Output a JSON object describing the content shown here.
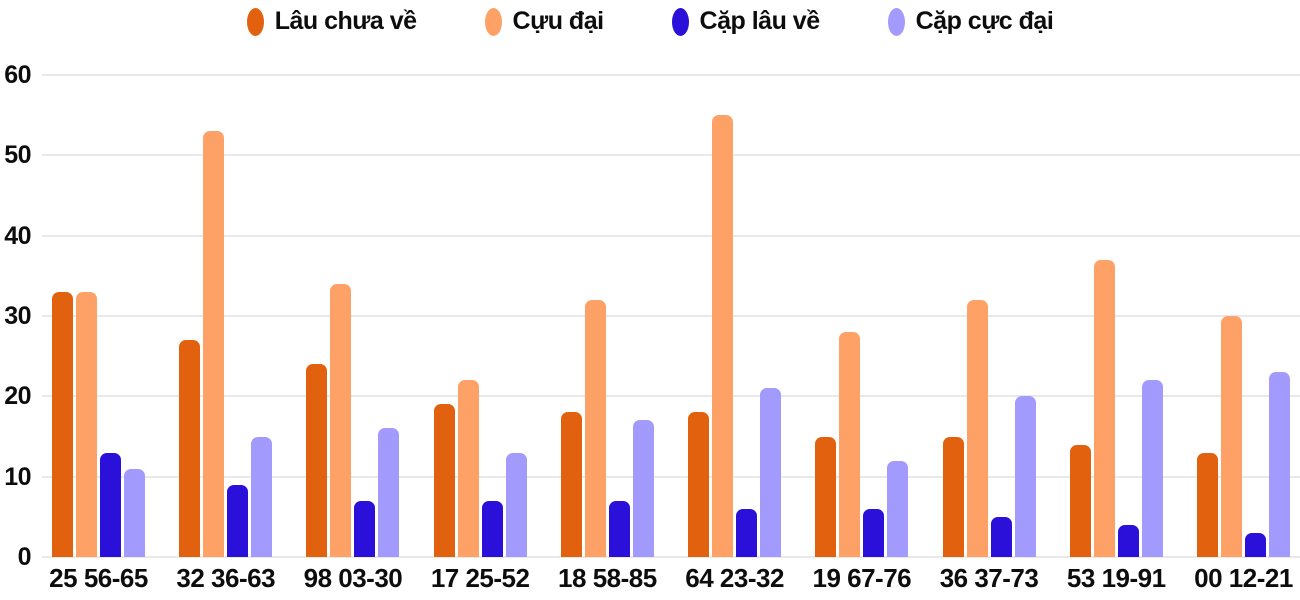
{
  "chart_data": {
    "type": "bar",
    "title": "",
    "xlabel": "",
    "ylabel": "",
    "ylim": [
      0,
      60
    ],
    "yticks": [
      0,
      10,
      20,
      30,
      40,
      50,
      60
    ],
    "grid": true,
    "legend_position": "top",
    "categories": [
      "25 56-65",
      "32 36-63",
      "98 03-30",
      "17 25-52",
      "18 58-85",
      "64 23-32",
      "19 67-76",
      "36 37-73",
      "53 19-91",
      "00 12-21"
    ],
    "series": [
      {
        "name": "Lâu chưa về",
        "color": "#e2610f",
        "values": [
          33,
          27,
          24,
          19,
          18,
          18,
          15,
          15,
          14,
          13
        ]
      },
      {
        "name": "Cựu đại",
        "color": "#fda167",
        "values": [
          33,
          53,
          34,
          22,
          32,
          55,
          28,
          32,
          37,
          30
        ]
      },
      {
        "name": "Cặp lâu về",
        "color": "#2a10d8",
        "values": [
          13,
          9,
          7,
          7,
          7,
          6,
          6,
          5,
          4,
          3
        ]
      },
      {
        "name": "Cặp cực đại",
        "color": "#a29afc",
        "values": [
          11,
          15,
          16,
          13,
          17,
          21,
          12,
          20,
          22,
          23
        ]
      }
    ],
    "colors": {
      "gridline": "#e9e9e9",
      "text": "#0d0d0d",
      "background": "#ffffff"
    }
  }
}
